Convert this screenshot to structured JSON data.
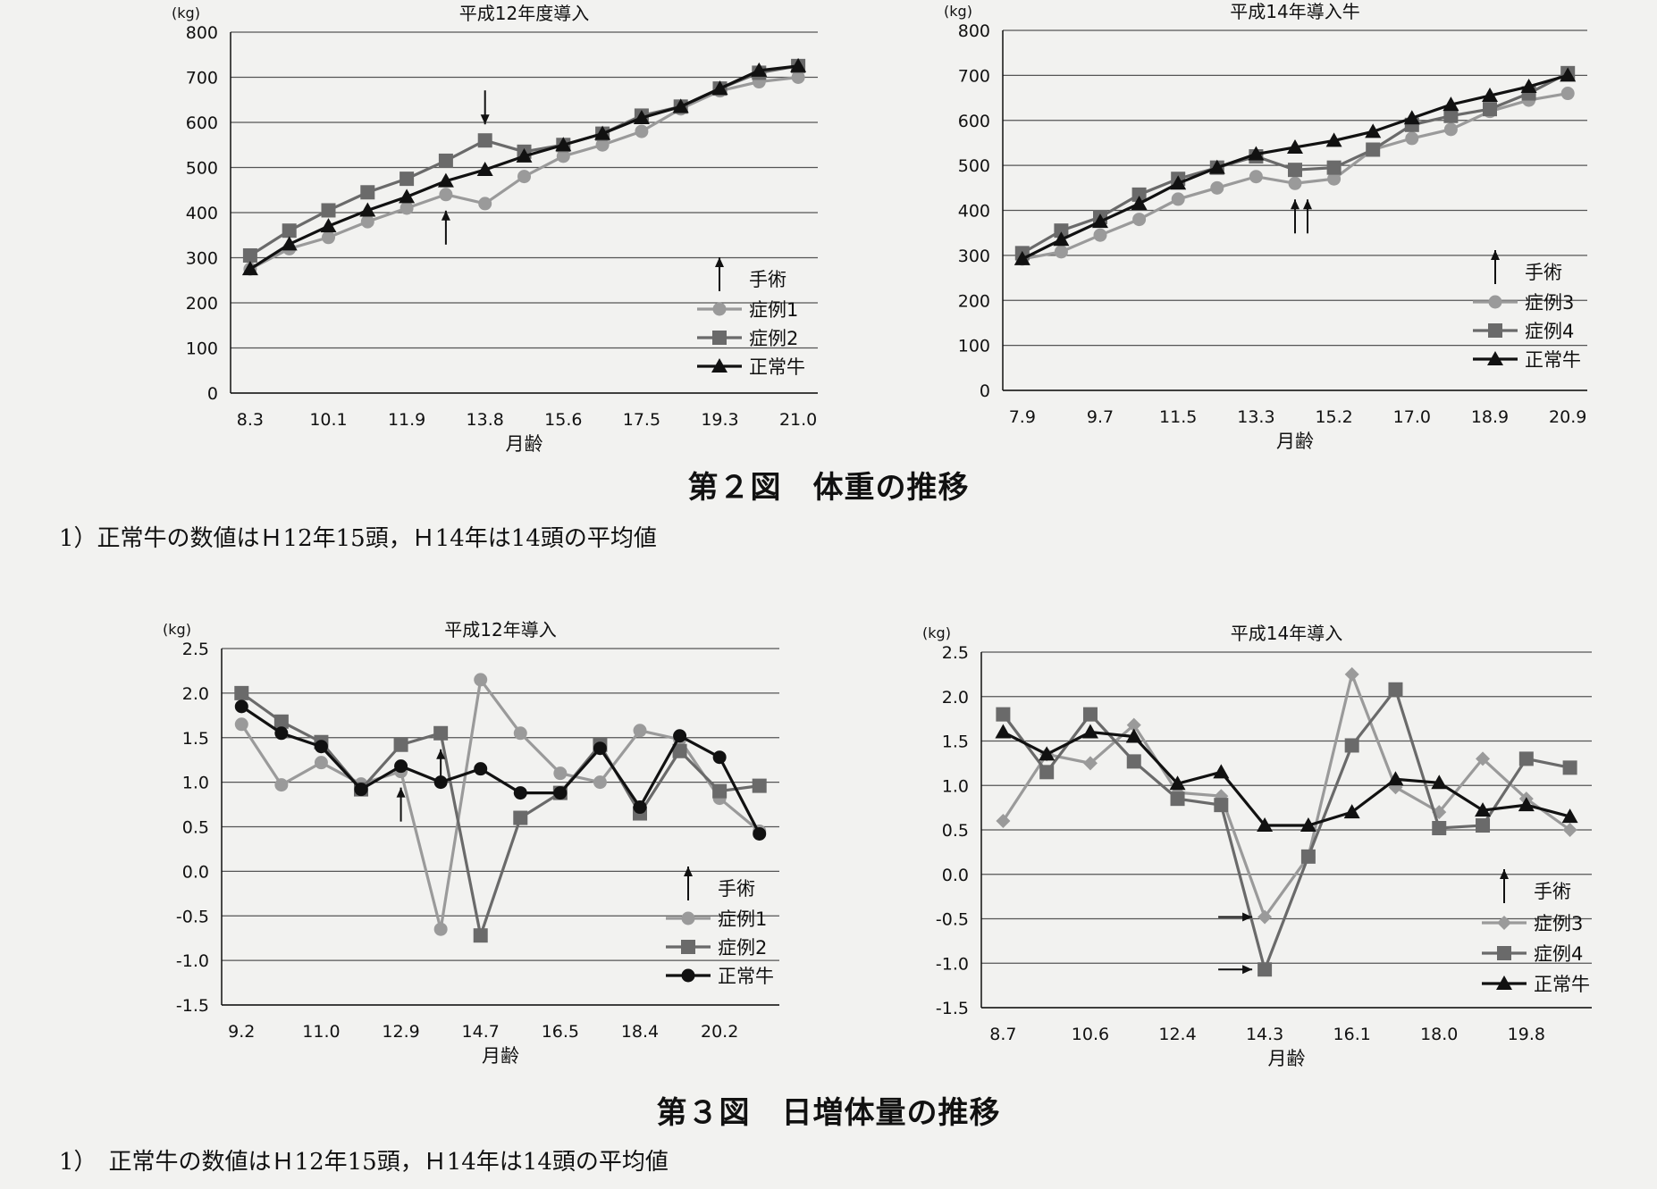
{
  "figure2": {
    "caption": "第２図　体重の推移",
    "note": "1）正常牛の数値はＨ12年15頭，Ｈ14年は14頭の平均値"
  },
  "figure3": {
    "caption": "第３図　日増体量の推移",
    "note": "1）　正常牛の数値はＨ12年15頭，Ｈ14年は14頭の平均値"
  },
  "chart_data": [
    {
      "type": "line",
      "title": "平成12年度導入",
      "unit": "(kg)",
      "xlabel": "月齢",
      "ylim": [
        0,
        800
      ],
      "yticks": [
        "0",
        "100",
        "200",
        "300",
        "400",
        "500",
        "600",
        "700",
        "800"
      ],
      "categories": [
        "8.3",
        "",
        "10.1",
        "",
        "11.9",
        "",
        "13.8",
        "",
        "15.6",
        "",
        "17.5",
        "",
        "19.3",
        "",
        "21.0"
      ],
      "grid": true,
      "legend_position": "lower-right",
      "surgery_label": "手術",
      "series": [
        {
          "name": "症例1",
          "marker": "circle",
          "color": "#9a9a9a",
          "values": [
            275,
            320,
            345,
            380,
            410,
            440,
            420,
            480,
            525,
            550,
            580,
            630,
            670,
            690,
            700
          ]
        },
        {
          "name": "症例2",
          "marker": "square",
          "color": "#6a6a6a",
          "values": [
            305,
            360,
            405,
            445,
            475,
            515,
            560,
            535,
            550,
            575,
            615,
            635,
            675,
            710,
            725
          ]
        },
        {
          "name": "正常牛",
          "marker": "triangle",
          "color": "#111111",
          "values": [
            275,
            330,
            370,
            405,
            435,
            470,
            495,
            525,
            550,
            575,
            610,
            635,
            675,
            715,
            725
          ]
        }
      ],
      "surgery_markers": [
        {
          "series": "症例2",
          "index": 6,
          "direction": "down"
        },
        {
          "series": "症例1",
          "index": 5,
          "direction": "up"
        }
      ]
    },
    {
      "type": "line",
      "title": "平成14年導入牛",
      "unit": "(kg)",
      "xlabel": "月齢",
      "ylim": [
        0,
        800
      ],
      "yticks": [
        "0",
        "100",
        "200",
        "300",
        "400",
        "500",
        "600",
        "700",
        "800"
      ],
      "categories": [
        "7.9",
        "",
        "9.7",
        "",
        "11.5",
        "",
        "13.3",
        "",
        "15.2",
        "",
        "17.0",
        "",
        "18.9",
        "",
        "20.9"
      ],
      "grid": true,
      "legend_position": "lower-right",
      "surgery_label": "手術",
      "series": [
        {
          "name": "症例3",
          "marker": "circle",
          "color": "#9a9a9a",
          "values": [
            292,
            308,
            345,
            380,
            425,
            450,
            475,
            460,
            470,
            535,
            560,
            580,
            620,
            645,
            660
          ]
        },
        {
          "name": "症例4",
          "marker": "square",
          "color": "#6a6a6a",
          "values": [
            305,
            355,
            385,
            435,
            470,
            495,
            520,
            490,
            495,
            535,
            590,
            610,
            625,
            660,
            705
          ]
        },
        {
          "name": "正常牛",
          "marker": "triangle",
          "color": "#111111",
          "values": [
            292,
            335,
            375,
            415,
            460,
            495,
            525,
            540,
            555,
            575,
            605,
            635,
            655,
            675,
            700
          ]
        }
      ],
      "surgery_markers": [
        {
          "series": "症例3",
          "index": 7,
          "direction": "up"
        },
        {
          "series": "症例3",
          "index": 7,
          "direction": "up",
          "offset": 1
        }
      ]
    },
    {
      "type": "line",
      "title": "平成12年導入",
      "unit": "(kg)",
      "xlabel": "月齢",
      "ylim": [
        -1.5,
        2.5
      ],
      "yticks": [
        "-1.5",
        "-1.0",
        "-0.5",
        "0.0",
        "0.5",
        "1.0",
        "1.5",
        "2.0",
        "2.5"
      ],
      "categories": [
        "9.2",
        "",
        "11.0",
        "",
        "12.9",
        "",
        "14.7",
        "",
        "16.5",
        "",
        "18.4",
        "",
        "20.2",
        ""
      ],
      "grid": true,
      "legend_position": "lower-right",
      "surgery_label": "手術",
      "series": [
        {
          "name": "症例1",
          "marker": "circle",
          "color": "#9a9a9a",
          "values": [
            1.65,
            0.97,
            1.22,
            0.98,
            1.12,
            -0.65,
            2.15,
            1.55,
            1.1,
            1.0,
            1.58,
            1.48,
            0.82,
            0.45
          ]
        },
        {
          "name": "症例2",
          "marker": "square",
          "color": "#6a6a6a",
          "values": [
            2.0,
            1.68,
            1.45,
            0.92,
            1.42,
            1.55,
            -0.72,
            0.6,
            0.88,
            1.42,
            0.65,
            1.35,
            0.9,
            0.96
          ]
        },
        {
          "name": "正常牛",
          "marker": "circle",
          "color": "#111111",
          "values": [
            1.85,
            1.55,
            1.4,
            0.92,
            1.18,
            1.0,
            1.15,
            0.88,
            0.88,
            1.38,
            0.72,
            1.52,
            1.28,
            0.42
          ]
        }
      ],
      "surgery_markers": [
        {
          "series": "症例1",
          "index": 4,
          "direction": "up"
        },
        {
          "series": "症例2",
          "index": 5,
          "direction": "up"
        }
      ]
    },
    {
      "type": "line",
      "title": "平成14年導入",
      "unit": "(kg)",
      "xlabel": "月齢",
      "ylim": [
        -1.5,
        2.5
      ],
      "yticks": [
        "-1.5",
        "-1.0",
        "-0.5",
        "0.0",
        "0.5",
        "1.0",
        "1.5",
        "2.0",
        "2.5"
      ],
      "categories": [
        "8.7",
        "",
        "10.6",
        "",
        "12.4",
        "",
        "14.3",
        "",
        "16.1",
        "",
        "18.0",
        "",
        "19.8",
        ""
      ],
      "grid": true,
      "legend_position": "lower-right",
      "surgery_label": "手術",
      "series": [
        {
          "name": "症例3",
          "marker": "diamond",
          "color": "#9a9a9a",
          "values": [
            0.6,
            1.35,
            1.25,
            1.68,
            0.92,
            0.88,
            -0.48,
            0.2,
            2.25,
            0.98,
            0.7,
            1.3,
            0.85,
            0.5
          ]
        },
        {
          "name": "症例4",
          "marker": "square",
          "color": "#6a6a6a",
          "values": [
            1.8,
            1.15,
            1.8,
            1.27,
            0.85,
            0.78,
            -1.07,
            0.2,
            1.45,
            2.08,
            0.52,
            0.55,
            1.3,
            1.2
          ]
        },
        {
          "name": "正常牛",
          "marker": "triangle",
          "color": "#111111",
          "values": [
            1.6,
            1.35,
            1.6,
            1.55,
            1.02,
            1.15,
            0.55,
            0.55,
            0.7,
            1.07,
            1.03,
            0.72,
            0.78,
            0.65
          ]
        }
      ],
      "surgery_markers": [
        {
          "series": "症例3",
          "index": 6,
          "direction": "right"
        },
        {
          "series": "症例4",
          "index": 6,
          "direction": "right"
        }
      ]
    }
  ]
}
